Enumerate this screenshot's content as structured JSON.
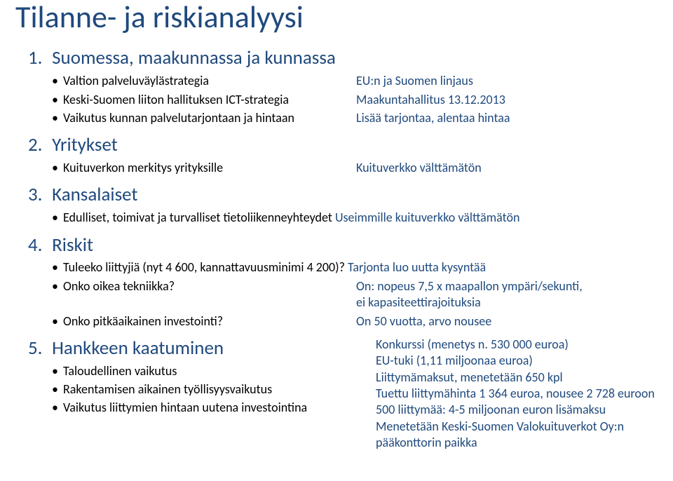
{
  "title": "Tilanne- ja riskianalyysi",
  "colors": {
    "heading_blue": "#1f497d",
    "body_black": "#000000",
    "background": "#ffffff"
  },
  "typography": {
    "title_fontsize_pt": 33,
    "section_fontsize_pt": 20,
    "bullet_fontsize_pt": 14,
    "font_family": "Calibri"
  },
  "sections": [
    {
      "ord": "1.",
      "heading": "Suomessa, maakunnassa ja kunnassa",
      "bullets": [
        {
          "left": "Valtion palveluväylästrategia",
          "right": "EU:n ja Suomen linjaus"
        },
        {
          "left": "Keski-Suomen liiton hallituksen ICT-strategia",
          "right": "Maakuntahallitus 13.12.2013"
        },
        {
          "left": "Vaikutus kunnan palvelutarjontaan ja hintaan",
          "right": "Lisää tarjontaa, alentaa hintaa"
        }
      ]
    },
    {
      "ord": "2.",
      "heading": "Yritykset",
      "bullets": [
        {
          "left": "Kuituverkon merkitys yrityksille",
          "right": "Kuituverkko välttämätön"
        }
      ]
    },
    {
      "ord": "3.",
      "heading": "Kansalaiset",
      "bullets": [
        {
          "mixed_left": "Edulliset, toimivat  ja turvalliset tietoliikenneyhteydet ",
          "mixed_right": "Useimmille kuituverkko välttämätön"
        }
      ]
    },
    {
      "ord": "4.",
      "heading": "Riskit",
      "bullets": [
        {
          "mixed_left": "Tuleeko liittyjiä (nyt 4 600, kannattavuusminimi 4 200)? ",
          "mixed_right": "Tarjonta luo uutta kysyntää"
        },
        {
          "left": "Onko oikea tekniikka?",
          "right": "On: nopeus 7,5 x maapallon ympäri/sekunti,"
        },
        {
          "right_only": "ei kapasiteettirajoituksia"
        },
        {
          "left": "Onko pitkäaikainen investointi?",
          "right": "On 50 vuotta, arvo nousee"
        }
      ]
    },
    {
      "ord": "5.",
      "heading": "Hankkeen kaatuminen",
      "bullets_left": [
        "Taloudellinen vaikutus",
        "Rakentamisen aikainen työllisyysvaikutus",
        "Vaikutus liittymien hintaan uutena investointina"
      ],
      "right_block": [
        "Konkurssi (menetys n. 530 000 euroa)",
        "EU-tuki (1,11 miljoonaa euroa)",
        "Liittymämaksut, menetetään 650 kpl",
        "Tuettu liittymähinta 1 364 euroa, nousee 2 728 euroon",
        "500 liittymää: 4-5 miljoonan euron lisämaksu",
        "Menetetään Keski-Suomen Valokuituverkot Oy:n",
        "pääkonttorin paikka"
      ]
    }
  ]
}
